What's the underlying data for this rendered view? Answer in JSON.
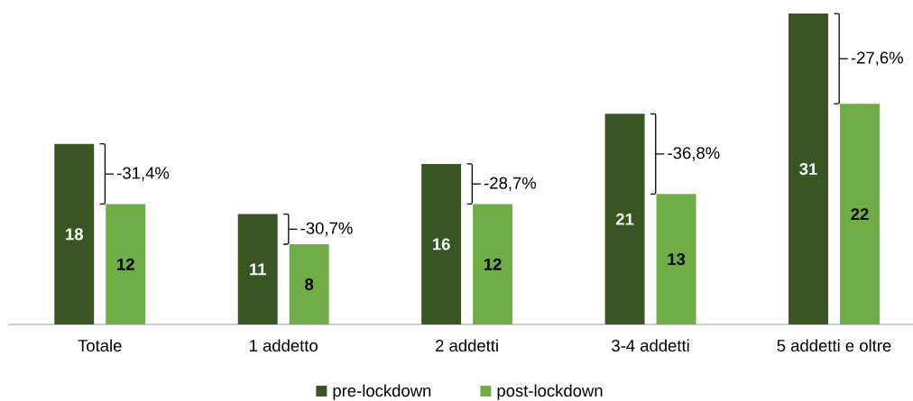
{
  "chart_data": {
    "type": "bar",
    "categories": [
      "Totale",
      "1 addetto",
      "2 addetti",
      "3-4 addetti",
      "5 addetti e oltre"
    ],
    "series": [
      {
        "name": "pre-lockdown",
        "color": "#375623",
        "values": [
          18,
          11,
          16,
          21,
          31
        ]
      },
      {
        "name": "post-lockdown",
        "color": "#70ad47",
        "values": [
          12,
          8,
          12,
          13,
          22
        ]
      }
    ],
    "data_labels": true,
    "legend": "bottom",
    "tick_labels": "x",
    "annotations": [
      "-31,4%",
      "-30,7%",
      "-28,7%",
      "-36,8%",
      "-27,6%"
    ]
  }
}
